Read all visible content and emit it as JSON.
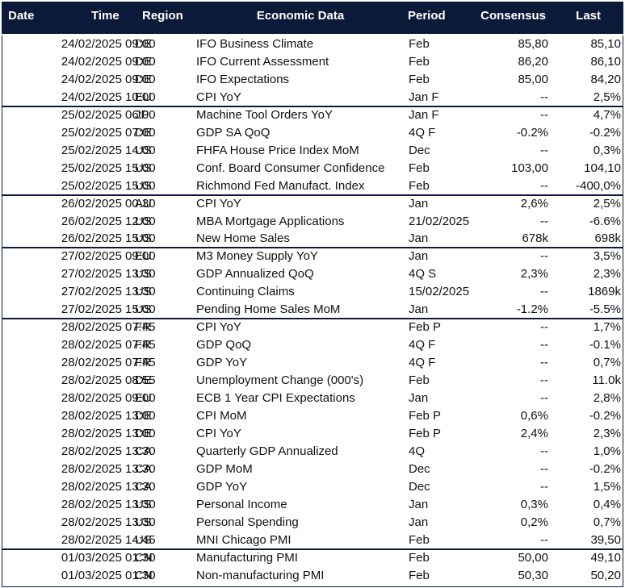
{
  "table": {
    "columns": [
      "Date",
      "Time",
      "Region",
      "Economic Data",
      "Period",
      "Consensus",
      "Last"
    ],
    "groups": [
      {
        "rows": [
          [
            "24/02/2025",
            "09:00",
            "DE",
            "IFO Business Climate",
            "Feb",
            "85,80",
            "85,10"
          ],
          [
            "24/02/2025",
            "09:00",
            "DE",
            "IFO Current Assessment",
            "Feb",
            "86,20",
            "86,10"
          ],
          [
            "24/02/2025",
            "09:00",
            "DE",
            "IFO Expectations",
            "Feb",
            "85,00",
            "84,20"
          ],
          [
            "24/02/2025",
            "10:00",
            "EU",
            "CPI YoY",
            "Jan F",
            "--",
            "2,5%"
          ]
        ]
      },
      {
        "rows": [
          [
            "25/02/2025",
            "06:00",
            "JP",
            "Machine Tool Orders YoY",
            "Jan F",
            "--",
            "4,7%"
          ],
          [
            "25/02/2025",
            "07:00",
            "DE",
            "GDP SA QoQ",
            "4Q F",
            "-0.2%",
            "-0.2%"
          ],
          [
            "25/02/2025",
            "14:00",
            "US",
            "FHFA House Price Index MoM",
            "Dec",
            "--",
            "0,3%"
          ],
          [
            "25/02/2025",
            "15:00",
            "US",
            "Conf. Board Consumer Confidence",
            "Feb",
            "103,00",
            "104,10"
          ],
          [
            "25/02/2025",
            "15:00",
            "US",
            "Richmond Fed Manufact. Index",
            "Feb",
            "--",
            "-400,0%"
          ]
        ]
      },
      {
        "rows": [
          [
            "26/02/2025",
            "00:30",
            "AU",
            "CPI YoY",
            "Jan",
            "2,6%",
            "2,5%"
          ],
          [
            "26/02/2025",
            "12:00",
            "US",
            "MBA Mortgage Applications",
            "21/02/2025",
            "--",
            "-6.6%"
          ],
          [
            "26/02/2025",
            "15:00",
            "US",
            "New Home Sales",
            "Jan",
            "678k",
            "698k"
          ]
        ]
      },
      {
        "rows": [
          [
            "27/02/2025",
            "09:00",
            "EU",
            "M3 Money Supply YoY",
            "Jan",
            "--",
            "3,5%"
          ],
          [
            "27/02/2025",
            "13:30",
            "US",
            "GDP Annualized QoQ",
            "4Q S",
            "2,3%",
            "2,3%"
          ],
          [
            "27/02/2025",
            "13:30",
            "US",
            "Continuing Claims",
            "15/02/2025",
            "--",
            "1869k"
          ],
          [
            "27/02/2025",
            "15:00",
            "US",
            "Pending Home Sales MoM",
            "Jan",
            "-1.2%",
            "-5.5%"
          ]
        ]
      },
      {
        "rows": [
          [
            "28/02/2025",
            "07:45",
            "FR",
            "CPI YoY",
            "Feb P",
            "--",
            "1,7%"
          ],
          [
            "28/02/2025",
            "07:45",
            "FR",
            "GDP QoQ",
            "4Q F",
            "--",
            "-0.1%"
          ],
          [
            "28/02/2025",
            "07:45",
            "FR",
            "GDP YoY",
            "4Q F",
            "--",
            "0,7%"
          ],
          [
            "28/02/2025",
            "08:55",
            "DE",
            "Unemployment Change (000's)",
            "Feb",
            "--",
            "11.0k"
          ],
          [
            "28/02/2025",
            "09:00",
            "EU",
            "ECB 1 Year CPI Expectations",
            "Jan",
            "--",
            "2,8%"
          ],
          [
            "28/02/2025",
            "13:00",
            "DE",
            "CPI MoM",
            "Feb P",
            "0,6%",
            "-0.2%"
          ],
          [
            "28/02/2025",
            "13:00",
            "DE",
            "CPI YoY",
            "Feb P",
            "2,4%",
            "2,3%"
          ],
          [
            "28/02/2025",
            "13:30",
            "CA",
            "Quarterly GDP Annualized",
            "4Q",
            "--",
            "1,0%"
          ],
          [
            "28/02/2025",
            "13:30",
            "CA",
            "GDP MoM",
            "Dec",
            "--",
            "-0.2%"
          ],
          [
            "28/02/2025",
            "13:30",
            "CA",
            "GDP YoY",
            "Dec",
            "--",
            "1,5%"
          ],
          [
            "28/02/2025",
            "13:30",
            "US",
            "Personal Income",
            "Jan",
            "0,3%",
            "0,4%"
          ],
          [
            "28/02/2025",
            "13:30",
            "US",
            "Personal Spending",
            "Jan",
            "0,2%",
            "0,7%"
          ],
          [
            "28/02/2025",
            "14:45",
            "US",
            "MNI Chicago PMI",
            "Feb",
            "--",
            "39,50"
          ]
        ]
      },
      {
        "rows": [
          [
            "01/03/2025",
            "01:30",
            "CN",
            "Manufacturing PMI",
            "Feb",
            "50,00",
            "49,10"
          ],
          [
            "01/03/2025",
            "01:30",
            "CN",
            "Non-manufacturing PMI",
            "Feb",
            "50,30",
            "50,20"
          ]
        ]
      }
    ]
  }
}
